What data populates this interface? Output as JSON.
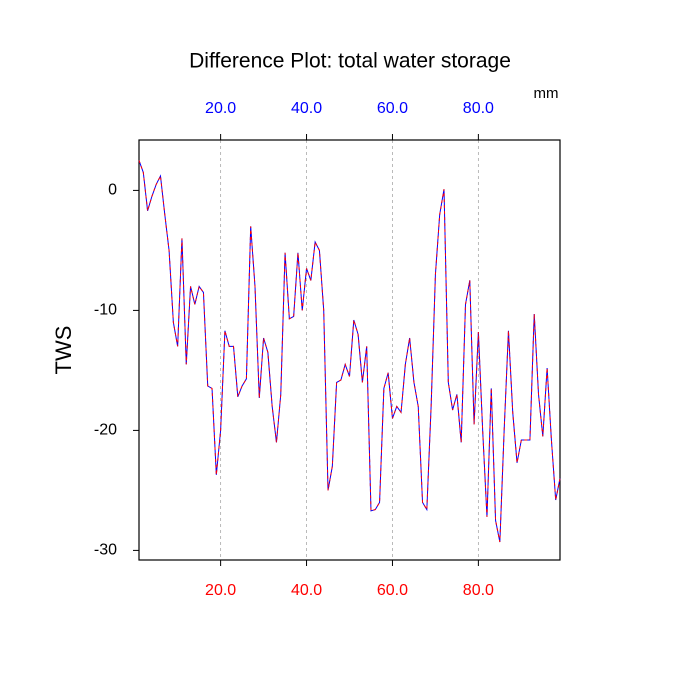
{
  "chart_data": {
    "type": "line",
    "title": "Difference Plot: total water storage",
    "units_label": "mm",
    "ylabel": "TWS",
    "x": [
      1,
      2,
      3,
      4,
      5,
      6,
      7,
      8,
      9,
      10,
      11,
      12,
      13,
      14,
      15,
      16,
      17,
      18,
      19,
      20,
      21,
      22,
      23,
      24,
      25,
      26,
      27,
      28,
      29,
      30,
      31,
      32,
      33,
      34,
      35,
      36,
      37,
      38,
      39,
      40,
      41,
      42,
      43,
      44,
      45,
      46,
      47,
      48,
      49,
      50,
      51,
      52,
      53,
      54,
      55,
      56,
      57,
      58,
      59,
      60,
      61,
      62,
      63,
      64,
      65,
      66,
      67,
      68,
      69,
      70,
      71,
      72,
      73,
      74,
      75,
      76,
      77,
      78,
      79,
      80,
      81,
      82,
      83,
      84,
      85,
      86,
      87,
      88,
      89,
      90,
      91,
      92,
      93,
      94,
      95,
      96,
      97,
      98,
      99
    ],
    "values": [
      2.5,
      1.5,
      -1.7,
      -0.5,
      0.5,
      1.2,
      -2,
      -5,
      -11,
      -13,
      -4,
      -14.5,
      -8,
      -9.5,
      -8,
      -8.5,
      -16.3,
      -16.5,
      -23.7,
      -20,
      -11.7,
      -13,
      -13,
      -17.2,
      -16.3,
      -15.7,
      -3,
      -8,
      -17.3,
      -12.3,
      -13.5,
      -18,
      -21,
      -17,
      -5.2,
      -10.7,
      -10.5,
      -5.2,
      -10,
      -6.5,
      -7.5,
      -4.3,
      -5,
      -10,
      -25,
      -23,
      -16,
      -15.8,
      -14.5,
      -15.5,
      -10.8,
      -12,
      -16,
      -13,
      -26.7,
      -26.6,
      -26,
      -16.5,
      -15.2,
      -19,
      -18,
      -18.5,
      -14.5,
      -12.3,
      -16,
      -18,
      -26,
      -26.6,
      -18,
      -7,
      -2,
      0.1,
      -16,
      -18.3,
      -17,
      -21,
      -9.5,
      -7.5,
      -19.5,
      -11.8,
      -20,
      -27.2,
      -16.5,
      -27.5,
      -29.3,
      -20,
      -11.7,
      -18.5,
      -22.7,
      -20.8,
      -20.8,
      -20.8,
      -10.3,
      -17,
      -20.5,
      -14.8,
      -20.8,
      -25.8,
      -24
    ],
    "color": "#0000ff",
    "dash_color": "#ff0000",
    "xlim": [
      1,
      99
    ],
    "ylim": [
      -30.8,
      4.2
    ],
    "xticks": [
      {
        "value": 20,
        "label": "20.0"
      },
      {
        "value": 40,
        "label": "40.0"
      },
      {
        "value": 60,
        "label": "60.0"
      },
      {
        "value": 80,
        "label": "80.0"
      }
    ],
    "yticks": [
      0,
      -10,
      -20,
      -30
    ],
    "top_tick_color": "#0000ff",
    "bottom_tick_color": "#ff0000",
    "grid": true
  }
}
